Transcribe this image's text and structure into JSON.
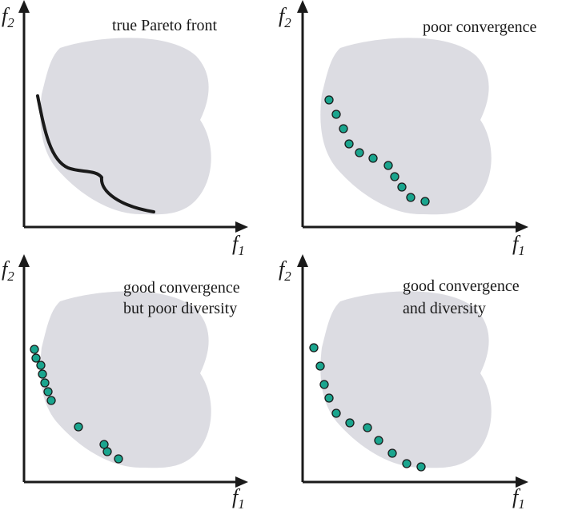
{
  "axes": {
    "x_symbol": "f",
    "x_sub": "1",
    "y_symbol": "f",
    "y_sub": "2"
  },
  "colors": {
    "region_fill": "#dcdce2",
    "axis": "#1a1a1a",
    "front_line": "#1a1a1a",
    "dot_fill": "#1aa58e",
    "dot_stroke": "#1a1a1a"
  },
  "panels": [
    {
      "id": "top-left",
      "title_lines": [
        "true Pareto front"
      ]
    },
    {
      "id": "top-right",
      "title_lines": [
        "poor convergence"
      ]
    },
    {
      "id": "bottom-left",
      "title_lines": [
        "good convergence",
        "but poor diversity"
      ]
    },
    {
      "id": "bottom-right",
      "title_lines": [
        "good convergence",
        "and diversity"
      ]
    }
  ]
}
